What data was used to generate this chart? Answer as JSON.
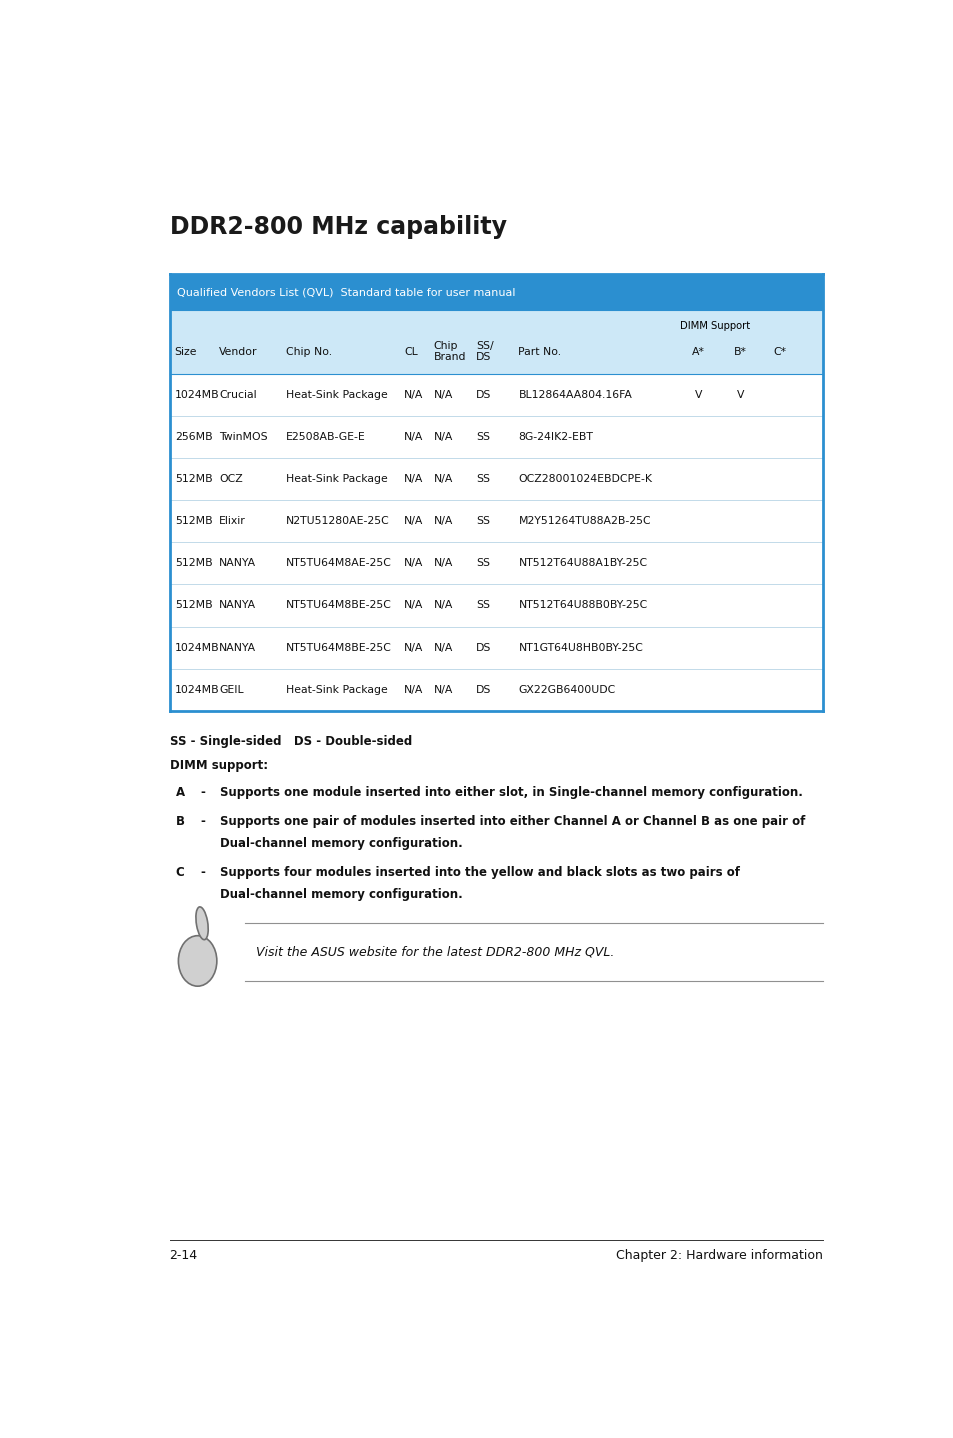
{
  "title": "DDR2-800 MHz capability",
  "table_header_bg": "#2b8fd0",
  "table_header_text": "#ffffff",
  "table_border_color": "#2b8fd0",
  "table_inner_line_color": "#a8cfe0",
  "qvl_label": "Qualified Vendors List (QVL)  Standard table for user manual",
  "dimm_support_label": "DIMM Support",
  "col_labels": [
    "Size",
    "Vendor",
    "Chip No.",
    "CL",
    "Chip\nBrand",
    "SS/\nDS",
    "Part No.",
    "A*",
    "B*",
    "C*"
  ],
  "rows": [
    [
      "1024MB",
      "Crucial",
      "Heat-Sink Package",
      "N/A",
      "N/A",
      "DS",
      "BL12864AA804.16FA",
      "V",
      "V",
      ""
    ],
    [
      "256MB",
      "TwinMOS",
      "E2508AB-GE-E",
      "N/A",
      "N/A",
      "SS",
      "8G-24IK2-EBT",
      "",
      "",
      ""
    ],
    [
      "512MB",
      "OCZ",
      "Heat-Sink Package",
      "N/A",
      "N/A",
      "SS",
      "OCZ28001024EBDCPE-K",
      "",
      "",
      ""
    ],
    [
      "512MB",
      "Elixir",
      "N2TU51280AE-25C",
      "N/A",
      "N/A",
      "SS",
      "M2Y51264TU88A2B-25C",
      "",
      "",
      ""
    ],
    [
      "512MB",
      "NANYA",
      "NT5TU64M8AE-25C",
      "N/A",
      "N/A",
      "SS",
      "NT512T64U88A1BY-25C",
      "",
      "",
      ""
    ],
    [
      "512MB",
      "NANYA",
      "NT5TU64M8BE-25C",
      "N/A",
      "N/A",
      "SS",
      "NT512T64U88B0BY-25C",
      "",
      "",
      ""
    ],
    [
      "1024MB",
      "NANYA",
      "NT5TU64M8BE-25C",
      "N/A",
      "N/A",
      "DS",
      "NT1GT64U8HB0BY-25C",
      "",
      "",
      ""
    ],
    [
      "1024MB",
      "GEIL",
      "Heat-Sink Package",
      "N/A",
      "N/A",
      "DS",
      "GX22GB6400UDC",
      "",
      "",
      ""
    ]
  ],
  "footer_left": "2-14",
  "footer_right": "Chapter 2: Hardware information",
  "note_text": "Visit the ASUS website for the latest DDR2-800 MHz QVL.",
  "ss_ds_text": "SS - Single-sided   DS - Double-sided",
  "dimm_support_text": "DIMM support:",
  "bullet_A": "Supports one module inserted into either slot, in Single-channel memory configuration.",
  "bullet_B1": "Supports one pair of modules inserted into either Channel A or Channel B as one pair of",
  "bullet_B2": "Dual-channel memory configuration.",
  "bullet_C1": "Supports four modules inserted into the yellow and black slots as two pairs of",
  "bullet_C2": "Dual-channel memory configuration.",
  "page_bg": "#ffffff"
}
